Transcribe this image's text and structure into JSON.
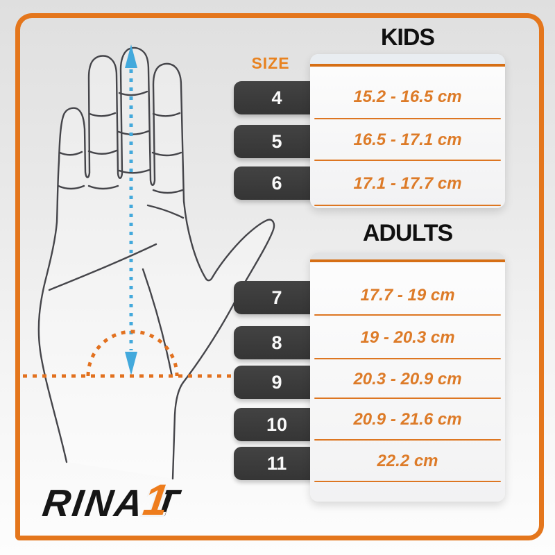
{
  "size_label": "SIZE",
  "logo": {
    "text_black": "RINA",
    "t": "T",
    "one": "1"
  },
  "hand_diagram": {
    "description": "palm-up hand outline with dashed hand-length measurement arrow and dashed wrist arc",
    "length_arrow_icon": "blue-dashed-double-arrow",
    "wrist_marker_icon": "orange-dashed-wrist-arc-and-line"
  },
  "colors": {
    "frame_orange": "#e4761c",
    "accent_orange": "#d66f15",
    "text_orange": "#dd7b28",
    "badge_dark": "#3a3a3a",
    "arrow_blue": "#43a9dc",
    "heading_black": "#101010"
  },
  "sections": [
    {
      "key": "kids",
      "title": "KIDS",
      "rows": [
        {
          "size": "4",
          "range": "15.2 - 16.5 cm"
        },
        {
          "size": "5",
          "range": "16.5 - 17.1 cm"
        },
        {
          "size": "6",
          "range": "17.1 - 17.7 cm"
        }
      ]
    },
    {
      "key": "adults",
      "title": "ADULTS",
      "rows": [
        {
          "size": "7",
          "range": "17.7 - 19 cm"
        },
        {
          "size": "8",
          "range": "19 - 20.3 cm"
        },
        {
          "size": "9",
          "range": "20.3 - 20.9 cm"
        },
        {
          "size": "10",
          "range": "20.9 - 21.6 cm"
        },
        {
          "size": "11",
          "range": "22.2 cm"
        }
      ]
    }
  ]
}
